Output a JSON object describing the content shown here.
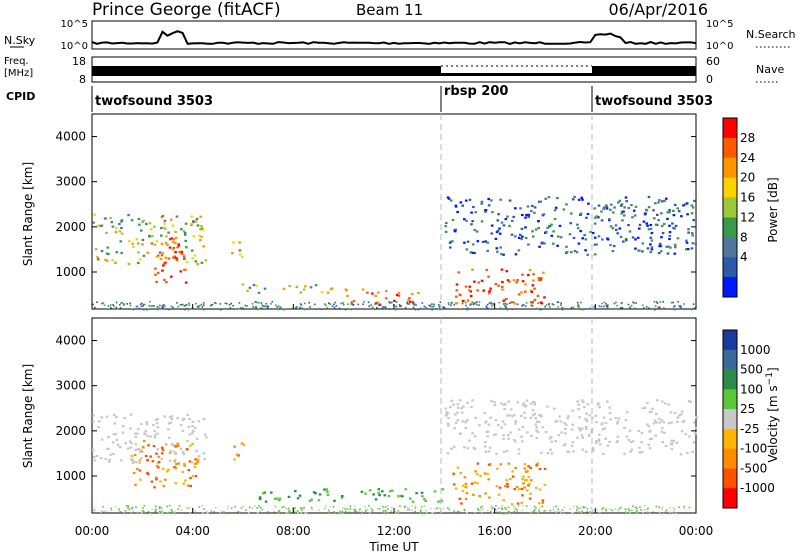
{
  "header": {
    "station": "Prince George (fitACF)",
    "beam": "Beam 11",
    "date": "06/Apr/2016"
  },
  "top_panels": {
    "nsky_label": "N.Sky",
    "nsky_ticks": [
      "10^5",
      "10^0"
    ],
    "nsearch_label": "N.Search",
    "nsearch_ticks": [
      "10^5",
      "10^0"
    ],
    "freq_label_line1": "Freq.",
    "freq_label_line2": "[MHz]",
    "freq_ticks": [
      "18",
      "8"
    ],
    "nave_label": "Nave",
    "nave_ticks": [
      "60",
      "0"
    ],
    "cpid_label": "CPID",
    "cpid_segments": [
      {
        "name": "twofsound 3503",
        "start_hour": 0,
        "end_hour": 14
      },
      {
        "name": "rbsp 200",
        "start_hour": 14,
        "end_hour": 20
      },
      {
        "name": "twofsound 3503",
        "start_hour": 20,
        "end_hour": 24
      }
    ]
  },
  "chart_data": [
    {
      "type": "heatmap",
      "title": "",
      "xlabel": "Time UT",
      "ylabel": "Slant Range [km]",
      "xlim": [
        0,
        24
      ],
      "ylim": [
        180,
        4500
      ],
      "x_ticks": [
        "00:00",
        "04:00",
        "08:00",
        "12:00",
        "16:00",
        "20:00",
        "00:00"
      ],
      "y_ticks": [
        "1000",
        "2000",
        "3000",
        "4000"
      ],
      "colorbar": {
        "label": "Power [dB]",
        "ticks": [
          "28",
          "24",
          "20",
          "16",
          "12",
          "8",
          "4"
        ],
        "colors": [
          "#ff0000",
          "#ff5a00",
          "#ff9500",
          "#ffd200",
          "#9cc83c",
          "#3a9a4a",
          "#50789c",
          "#2a5aaa",
          "#0018ff"
        ]
      },
      "regions": [
        {
          "t0": 0.0,
          "t1": 4.5,
          "r0": 1200,
          "r1": 2300,
          "level": "medium"
        },
        {
          "t0": 2.3,
          "t1": 3.7,
          "r0": 750,
          "r1": 1800,
          "level": "high"
        },
        {
          "t0": 5.5,
          "t1": 6.0,
          "r0": 1300,
          "r1": 1800,
          "level": "medium"
        },
        {
          "t0": 5.8,
          "t1": 9.5,
          "r0": 550,
          "r1": 750,
          "level": "medium"
        },
        {
          "t0": 10.0,
          "t1": 13.0,
          "r0": 300,
          "r1": 650,
          "level": "high"
        },
        {
          "t0": 14.4,
          "t1": 18.0,
          "r0": 300,
          "r1": 1100,
          "level": "high"
        },
        {
          "t0": 14.0,
          "t1": 24.0,
          "r0": 1400,
          "r1": 2700,
          "level": "low"
        }
      ]
    },
    {
      "type": "heatmap",
      "title": "",
      "xlabel": "Time UT",
      "ylabel": "Slant Range [km]",
      "xlim": [
        0,
        24
      ],
      "ylim": [
        180,
        4500
      ],
      "x_ticks": [
        "00:00",
        "04:00",
        "08:00",
        "12:00",
        "16:00",
        "20:00",
        "00:00"
      ],
      "y_ticks": [
        "1000",
        "2000",
        "3000",
        "4000"
      ],
      "colorbar": {
        "label": "Velocity [m s^-1]",
        "ticks": [
          "1000",
          "500",
          "100",
          "25",
          "-25",
          "-100",
          "-500",
          "-1000"
        ],
        "colors": [
          "#1a3aa0",
          "#3a6a9a",
          "#2e8a4a",
          "#58c838",
          "#c8c8c8",
          "#ffb400",
          "#ff8c00",
          "#ff5000",
          "#ff0000"
        ]
      },
      "regions": [
        {
          "t0": 0.0,
          "t1": 4.5,
          "r0": 1300,
          "r1": 2400,
          "level": "ground"
        },
        {
          "t0": 1.5,
          "t1": 4.2,
          "r0": 750,
          "r1": 1800,
          "level": "negative"
        },
        {
          "t0": 5.5,
          "t1": 6.0,
          "r0": 1300,
          "r1": 1800,
          "level": "negative"
        },
        {
          "t0": 6.5,
          "t1": 14.0,
          "r0": 450,
          "r1": 750,
          "level": "positive"
        },
        {
          "t0": 14.0,
          "t1": 24.0,
          "r0": 1500,
          "r1": 2700,
          "level": "ground"
        },
        {
          "t0": 14.3,
          "t1": 18.0,
          "r0": 400,
          "r1": 1300,
          "level": "negative"
        }
      ]
    }
  ]
}
